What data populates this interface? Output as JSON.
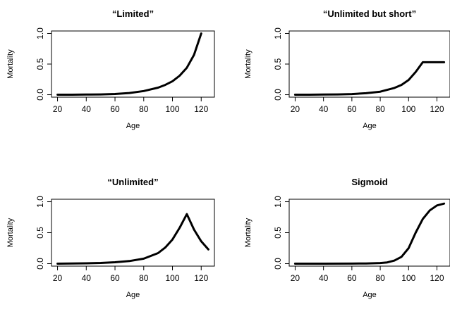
{
  "chart_data": [
    {
      "type": "line",
      "title": "“Limited”",
      "xlabel": "Age",
      "ylabel": "Mortality",
      "xlim": [
        20,
        125
      ],
      "ylim": [
        0,
        1
      ],
      "xticks": [
        "20",
        "40",
        "60",
        "80",
        "100",
        "120"
      ],
      "yticks": [
        "0.0",
        "0.5",
        "1.0"
      ],
      "grid": false,
      "series": [
        {
          "x": [
            20,
            30,
            40,
            50,
            60,
            70,
            80,
            90,
            95,
            100,
            105,
            110,
            115,
            120
          ],
          "y": [
            0.0,
            0.0,
            0.002,
            0.005,
            0.012,
            0.028,
            0.06,
            0.115,
            0.16,
            0.22,
            0.31,
            0.44,
            0.65,
            1.0
          ]
        }
      ]
    },
    {
      "type": "line",
      "title": "“Unlimited but short”",
      "xlabel": "Age",
      "ylabel": "Mortality",
      "xlim": [
        20,
        125
      ],
      "ylim": [
        0,
        1
      ],
      "xticks": [
        "20",
        "40",
        "60",
        "80",
        "100",
        "120"
      ],
      "yticks": [
        "0.0",
        "0.5",
        "1.0"
      ],
      "grid": false,
      "series": [
        {
          "x": [
            20,
            30,
            40,
            50,
            60,
            70,
            80,
            90,
            95,
            100,
            105,
            110,
            115,
            120,
            125
          ],
          "y": [
            0.0,
            0.0,
            0.002,
            0.005,
            0.011,
            0.024,
            0.05,
            0.11,
            0.16,
            0.24,
            0.37,
            0.53,
            0.53,
            0.53,
            0.53
          ]
        }
      ]
    },
    {
      "type": "line",
      "title": "“Unlimited”",
      "xlabel": "Age",
      "ylabel": "Mortality",
      "xlim": [
        20,
        125
      ],
      "ylim": [
        0,
        1
      ],
      "xticks": [
        "20",
        "40",
        "60",
        "80",
        "100",
        "120"
      ],
      "yticks": [
        "0.0",
        "0.5",
        "1.0"
      ],
      "grid": false,
      "series": [
        {
          "x": [
            20,
            30,
            40,
            50,
            60,
            70,
            80,
            90,
            95,
            100,
            105,
            110,
            115,
            120,
            125
          ],
          "y": [
            0.0,
            0.002,
            0.005,
            0.011,
            0.022,
            0.042,
            0.08,
            0.17,
            0.26,
            0.39,
            0.58,
            0.8,
            0.55,
            0.36,
            0.23
          ]
        }
      ]
    },
    {
      "type": "line",
      "title": "Sigmoid",
      "xlabel": "Age",
      "ylabel": "Mortality",
      "xlim": [
        20,
        125
      ],
      "ylim": [
        0,
        1
      ],
      "xticks": [
        "20",
        "40",
        "60",
        "80",
        "100",
        "120"
      ],
      "yticks": [
        "0.0",
        "0.5",
        "1.0"
      ],
      "grid": false,
      "series": [
        {
          "x": [
            20,
            40,
            60,
            70,
            80,
            85,
            90,
            95,
            100,
            105,
            110,
            115,
            120,
            125
          ],
          "y": [
            0.0,
            0.0,
            0.001,
            0.003,
            0.01,
            0.02,
            0.05,
            0.11,
            0.25,
            0.5,
            0.72,
            0.86,
            0.94,
            0.97
          ]
        }
      ]
    }
  ]
}
